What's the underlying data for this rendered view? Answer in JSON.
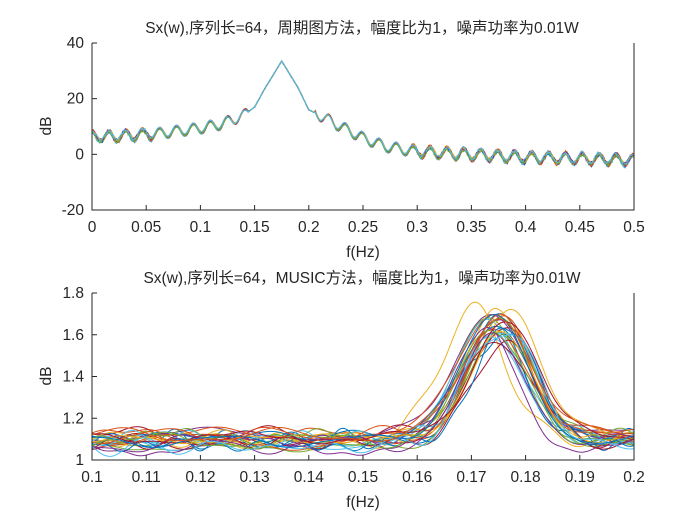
{
  "chart_data": [
    {
      "type": "line",
      "title": "Sx(w),序列长=64，周期图方法，幅度比为1，噪声功率为0.01W",
      "xlabel": "f(Hz)",
      "ylabel": "dB",
      "xlim": [
        0,
        0.5
      ],
      "ylim": [
        -20,
        40
      ],
      "xticks": [
        "0",
        "0.05",
        "0.1",
        "0.15",
        "0.2",
        "0.25",
        "0.3",
        "0.35",
        "0.4",
        "0.45",
        "0.5"
      ],
      "yticks": [
        "-20",
        "0",
        "20",
        "40"
      ],
      "grid": false,
      "series_count": 20,
      "peak": {
        "x": 0.175,
        "y": 33.5
      },
      "envelope": {
        "x": [
          0,
          0.02,
          0.04,
          0.06,
          0.08,
          0.1,
          0.12,
          0.14,
          0.15,
          0.16,
          0.175,
          0.19,
          0.2,
          0.21,
          0.23,
          0.25,
          0.27,
          0.3,
          0.35,
          0.4,
          0.45,
          0.5
        ],
        "y": [
          6.5,
          6.5,
          7,
          7.5,
          8.5,
          9.5,
          11,
          14,
          17,
          24,
          33.5,
          24,
          16,
          14,
          10,
          6,
          3,
          1,
          0,
          -1,
          -1.5,
          -2
        ]
      }
    },
    {
      "type": "line",
      "title": "Sx(w),序列长=64，MUSIC方法，幅度比为1，噪声功率为0.01W",
      "xlabel": "f(Hz)",
      "ylabel": "dB",
      "xlim": [
        0.1,
        0.2
      ],
      "ylim": [
        1,
        1.8
      ],
      "xticks": [
        "0.1",
        "0.11",
        "0.12",
        "0.13",
        "0.14",
        "0.15",
        "0.16",
        "0.17",
        "0.18",
        "0.19",
        "0.2"
      ],
      "yticks": [
        "1",
        "1.2",
        "1.4",
        "1.6",
        "1.8"
      ],
      "grid": false,
      "series_count": 30,
      "baseline": 1.09,
      "peak": {
        "x": 0.175,
        "y": 1.63
      }
    }
  ],
  "colors": [
    "#0072bd",
    "#d95319",
    "#edb120",
    "#7e2f8e",
    "#77ac30",
    "#4dbeee",
    "#a2142f"
  ]
}
